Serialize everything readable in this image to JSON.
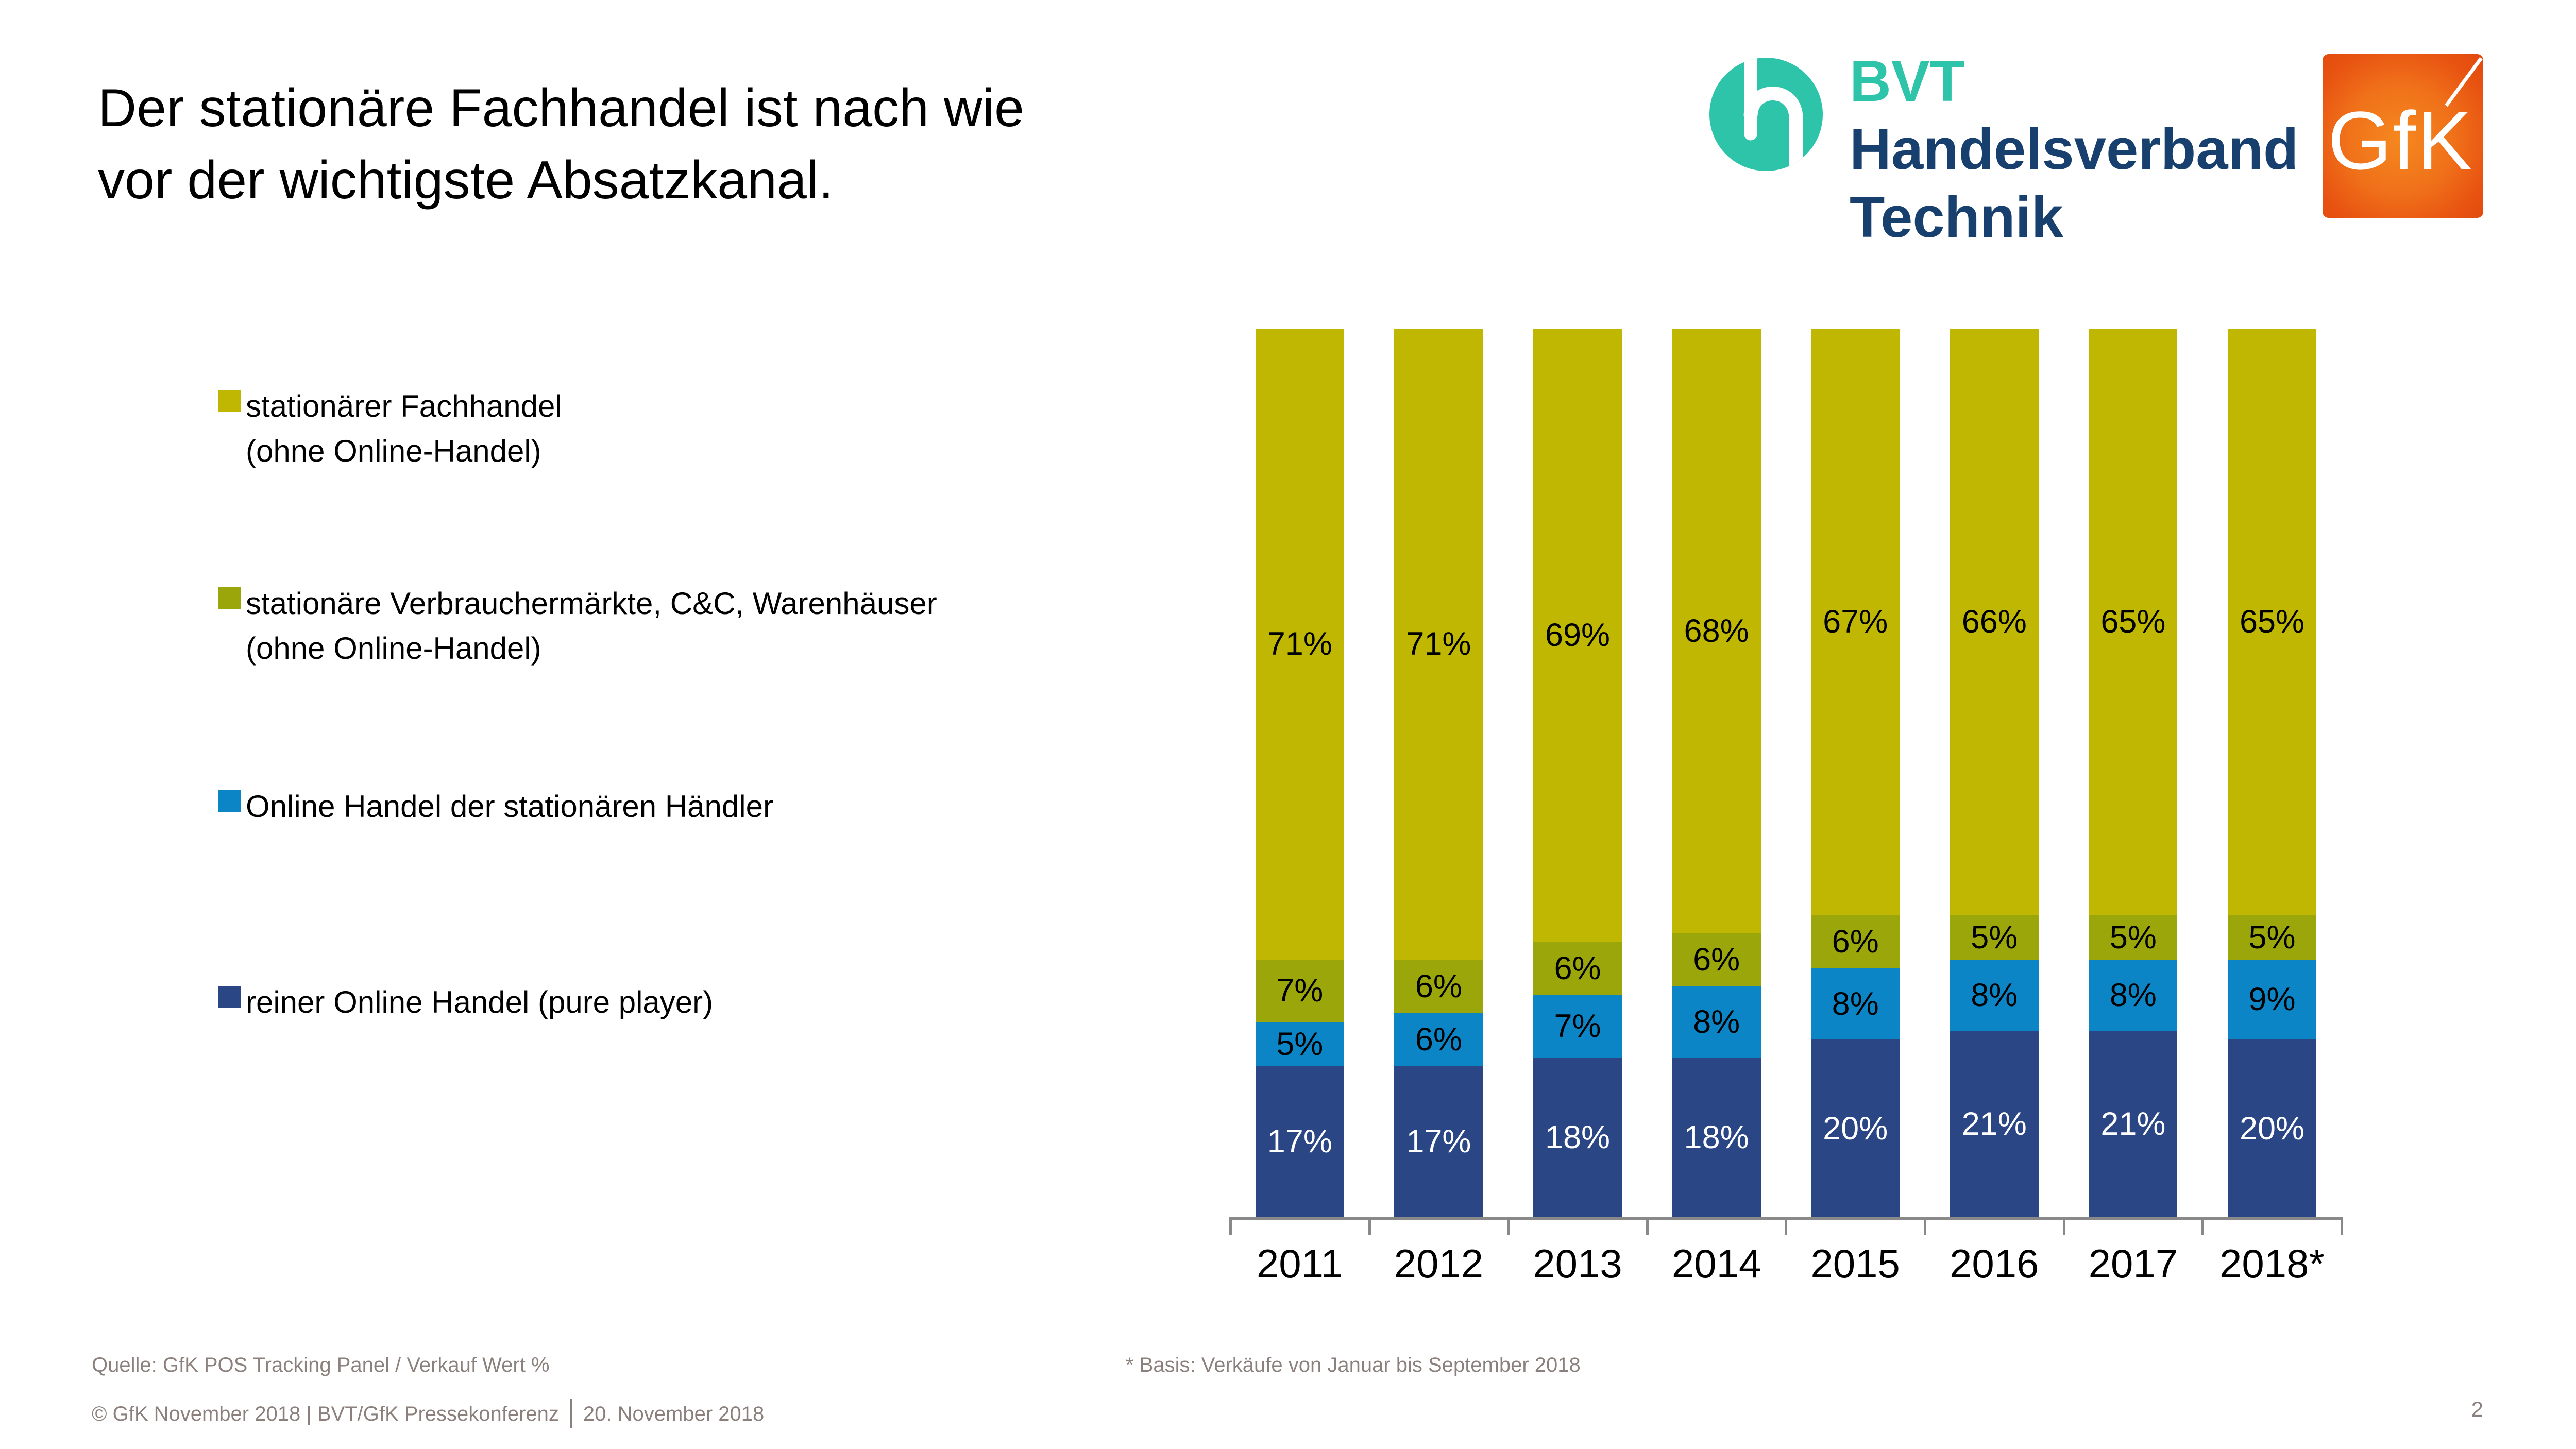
{
  "slide": {
    "title_lines": [
      "Der stationäre Fachhandel ist nach wie",
      "vor der wichtigste Absatzkanal."
    ],
    "page_number": "2",
    "background": "#ffffff"
  },
  "logos": {
    "bvt": {
      "abbr": "BVT",
      "name_line1": "Handelsverband",
      "name_line2": "Technik",
      "teal": "#2ec4a9",
      "navy": "#17406e"
    },
    "gfk": {
      "wordmark": "GfK",
      "orange_light": "#f5881f",
      "orange_dark": "#e1490c"
    }
  },
  "legend": {
    "items": [
      {
        "color": "#c0b703",
        "lines": [
          "stationärer Fachhandel",
          "(ohne Online-Handel)"
        ]
      },
      {
        "color": "#9ba60b",
        "lines": [
          "stationäre Verbrauchermärkte, C&C, Warenhäuser",
          "(ohne Online-Handel)"
        ]
      },
      {
        "color": "#0b85c6",
        "lines": [
          "Online Handel der stationären Händler"
        ]
      },
      {
        "color": "#2b4684",
        "lines": [
          "reiner Online Handel (pure player)"
        ]
      }
    ]
  },
  "chart_data": {
    "type": "bar",
    "stacked": true,
    "title": "",
    "xlabel": "",
    "ylabel": "",
    "categories": [
      "2011",
      "2012",
      "2013",
      "2014",
      "2015",
      "2016",
      "2017",
      "2018*"
    ],
    "series": [
      {
        "name": "stationärer Fachhandel (ohne Online-Handel)",
        "color": "#c0b703",
        "label_color": "#000000",
        "values": [
          71,
          71,
          69,
          68,
          67,
          66,
          65,
          65
        ]
      },
      {
        "name": "stationäre Verbrauchermärkte, C&C, Warenhäuser (ohne Online-Handel)",
        "color": "#9ba60b",
        "label_color": "#000000",
        "values": [
          7,
          6,
          6,
          6,
          6,
          5,
          5,
          5
        ]
      },
      {
        "name": "Online Handel der stationären Händler",
        "color": "#0b85c6",
        "label_color": "#000000",
        "values": [
          5,
          6,
          7,
          8,
          8,
          8,
          8,
          9
        ]
      },
      {
        "name": "reiner Online Handel (pure player)",
        "color": "#2b4684",
        "label_color": "#ffffff",
        "values": [
          17,
          17,
          18,
          18,
          20,
          21,
          21,
          20
        ]
      }
    ],
    "value_suffix": "%",
    "ylim": [
      0,
      100
    ],
    "grid": false,
    "legend_position": "left",
    "axis_color": "#898989"
  },
  "footer": {
    "source": "Quelle: GfK POS Tracking Panel / Verkauf Wert %",
    "basis_note": "* Basis: Verkäufe von Januar bis September 2018",
    "copyright": "© GfK November 2018 | BVT/GfK Pressekonferenz",
    "date": "20. November 2018"
  }
}
